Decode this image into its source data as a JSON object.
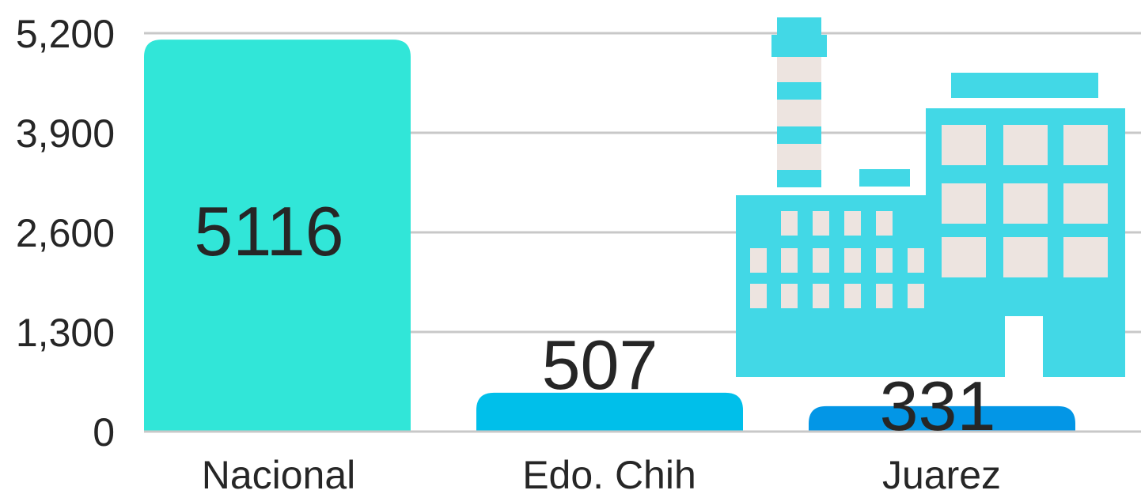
{
  "chart_data": {
    "type": "bar",
    "title": "",
    "xlabel": "",
    "ylabel": "",
    "categories": [
      "Nacional",
      "Edo. Chih",
      "Juarez"
    ],
    "values": [
      5116,
      507,
      331
    ],
    "data_labels": [
      "5116",
      "507",
      "331"
    ],
    "ylim": [
      0,
      5200
    ],
    "yticks": [
      0,
      1300,
      2600,
      3900,
      5200
    ],
    "ytick_labels": [
      "0",
      "1,300",
      "2,600",
      "3,900",
      "5,200"
    ],
    "grid": true,
    "legend": "none",
    "bar_colors": [
      "#31e6d8",
      "#00bfea",
      "#0396e6"
    ],
    "decoration": {
      "icon": "factory-icon",
      "color": "#42d8e6",
      "window_color": "#ede4e0"
    }
  }
}
